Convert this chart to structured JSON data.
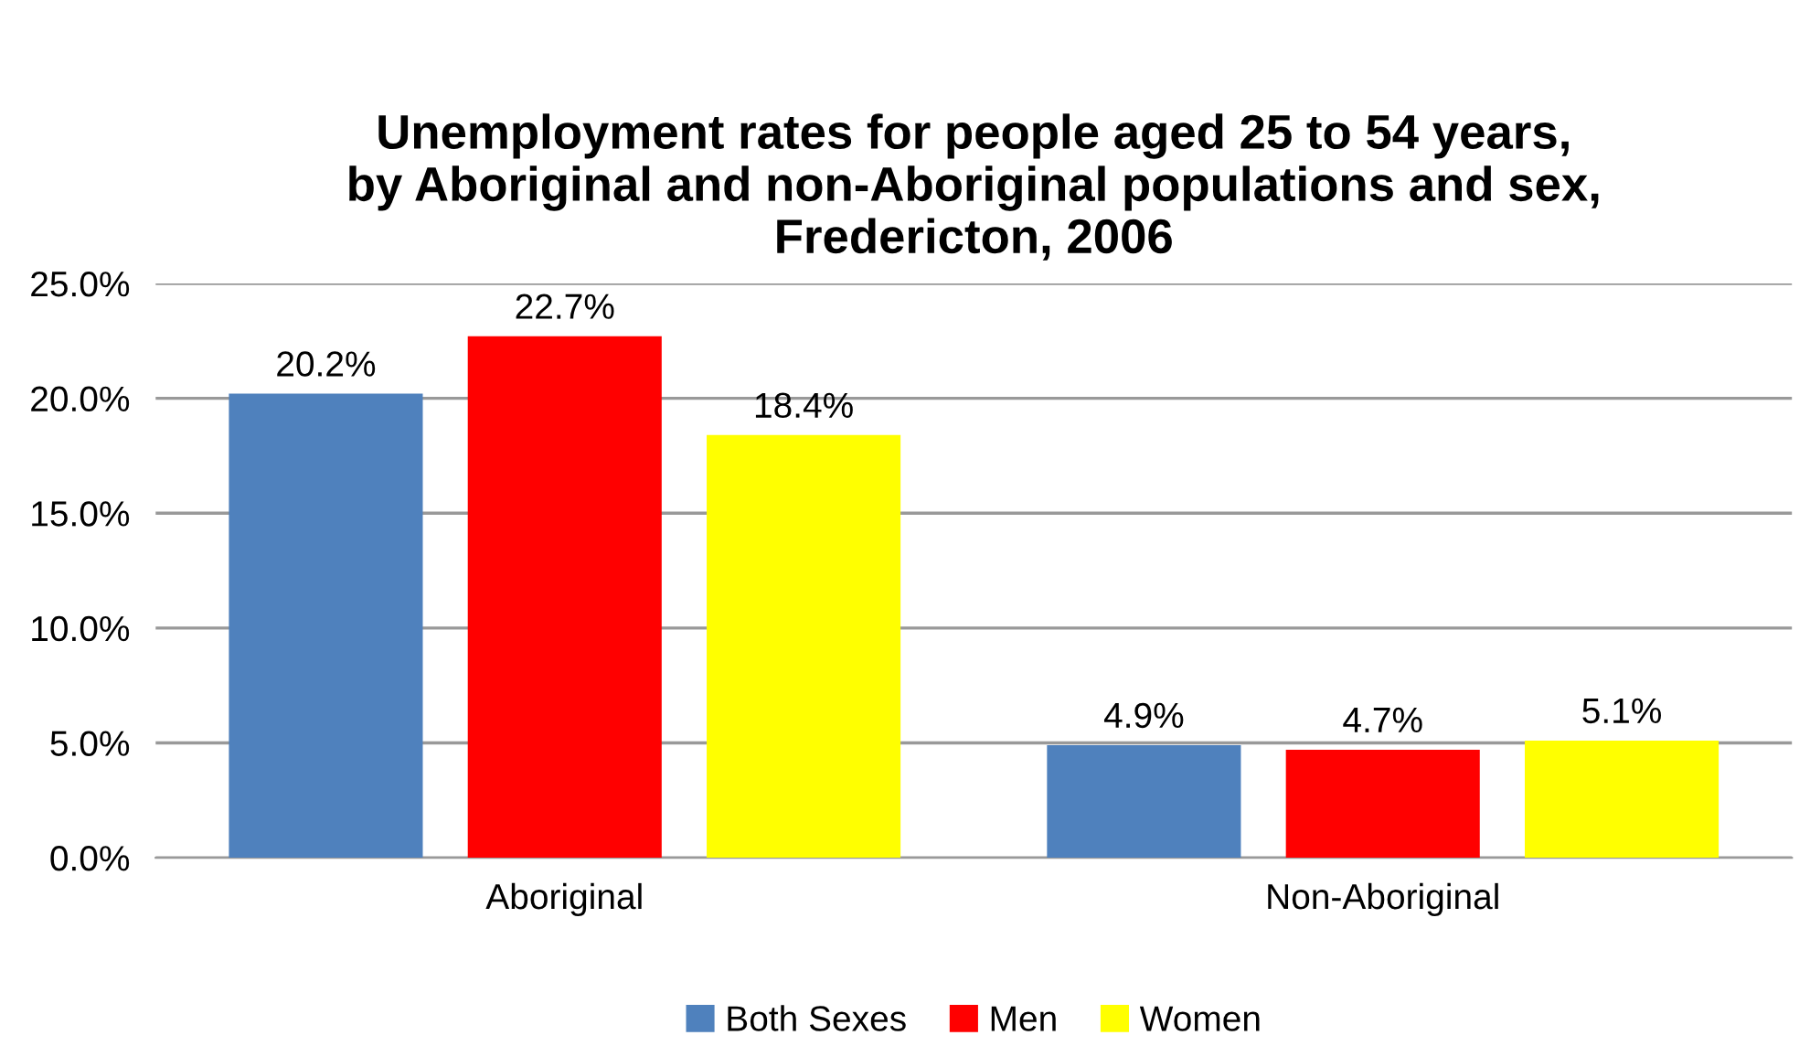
{
  "chart_data": {
    "type": "bar",
    "title": "Unemployment rates for people aged 25 to 54 years,\nby Aboriginal and non-Aboriginal populations and sex,\nFredericton, 2006",
    "categories": [
      "Aboriginal",
      "Non-Aboriginal"
    ],
    "series": [
      {
        "name": "Both Sexes",
        "color": "#4f81bd",
        "values": [
          20.2,
          4.9
        ],
        "value_labels": [
          "20.2%",
          "4.9%"
        ]
      },
      {
        "name": "Men",
        "color": "#ff0000",
        "values": [
          22.7,
          4.7
        ],
        "value_labels": [
          "22.7%",
          "4.7%"
        ]
      },
      {
        "name": "Women",
        "color": "#ffff00",
        "values": [
          18.4,
          5.1
        ],
        "value_labels": [
          "18.4%",
          "5.1%"
        ]
      }
    ],
    "ylim": [
      0,
      25
    ],
    "yticks": [
      {
        "value": 0,
        "label": "0.0%"
      },
      {
        "value": 5,
        "label": "5.0%"
      },
      {
        "value": 10,
        "label": "10.0%"
      },
      {
        "value": 15,
        "label": "15.0%"
      },
      {
        "value": 20,
        "label": "20.0%"
      },
      {
        "value": 25,
        "label": "25.0%"
      }
    ],
    "grid": "y",
    "legend": "bottom"
  }
}
